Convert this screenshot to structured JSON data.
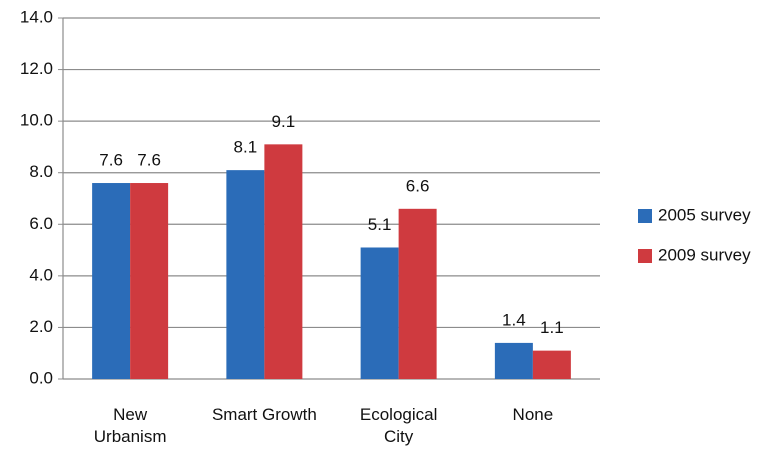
{
  "chart_data": {
    "type": "bar",
    "categories": [
      "New Urbanism",
      "Smart Growth",
      "Ecological City",
      "None"
    ],
    "series": [
      {
        "name": "2005 survey",
        "color": "#2b6cb8",
        "values": [
          7.6,
          8.1,
          5.1,
          1.4
        ]
      },
      {
        "name": "2009 survey",
        "color": "#cf3a3f",
        "values": [
          7.6,
          9.1,
          6.6,
          1.1
        ]
      }
    ],
    "ylim": [
      0,
      14
    ],
    "yticks": [
      {
        "value": 0,
        "label": "0.0"
      },
      {
        "value": 2,
        "label": "2.0"
      },
      {
        "value": 4,
        "label": "4.0"
      },
      {
        "value": 6,
        "label": "6.0"
      },
      {
        "value": 8,
        "label": "8.0"
      },
      {
        "value": 10,
        "label": "10.0"
      },
      {
        "value": 12,
        "label": "12.0"
      },
      {
        "value": 14,
        "label": "14.0"
      }
    ],
    "grid": true,
    "legend": "right"
  }
}
